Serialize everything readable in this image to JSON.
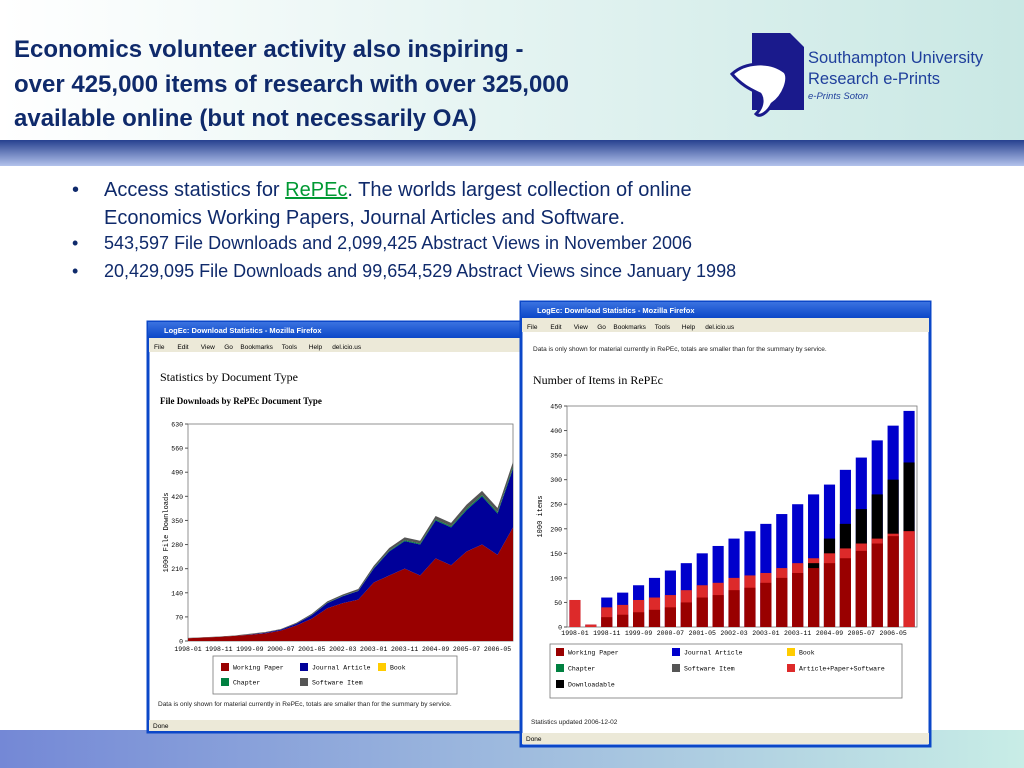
{
  "header": {
    "title_lines": [
      "Economics volunteer activity also inspiring -",
      "over 425,000 items of research with over 325,000",
      "available online (but not necessarily OA)"
    ],
    "logo": {
      "line1": "Southampton University",
      "line2": "Research e-Prints",
      "line3": "e-Prints Soton"
    }
  },
  "bullets": [
    [
      "Access statistics for ",
      "RePEc",
      ". The worlds largest collection of online",
      "Economics Working Papers, Journal Articles and Software."
    ],
    [
      "543,597 File Downloads and 2,099,425 Abstract Views in November 2006"
    ],
    [
      "20,429,095 File Downloads and 99,654,529 Abstract Views since January 1998"
    ]
  ],
  "windows": [
    {
      "title": "LogEc: Download Statistics - Mozilla Firefox",
      "menu": [
        "File",
        "Edit",
        "View",
        "Go",
        "Bookmarks",
        "Tools",
        "Help",
        "del.icio.us"
      ],
      "heading": "Statistics by Document Type",
      "subheading": "File Downloads by RePEc Document Type",
      "chart": {
        "type": "area",
        "stacked": true,
        "y_label": "1000 File Downloads",
        "categories": [
          "1998-01",
          null,
          "1998-11",
          null,
          "1999-09",
          null,
          "2000-07",
          null,
          "2001-05",
          null,
          "2002-03",
          null,
          "2003-01",
          null,
          "2003-11",
          null,
          "2004-09",
          null,
          "2005-07",
          null,
          "2006-05",
          null
        ],
        "ylim": [
          0,
          630
        ],
        "yticks": [
          0,
          70,
          140,
          210,
          280,
          350,
          420,
          490,
          560,
          630
        ],
        "series": [
          {
            "name": "Working Paper",
            "color": "#990000",
            "values": [
              8,
              10,
              12,
              15,
              18,
              22,
              30,
              45,
              65,
              95,
              110,
              120,
              170,
              190,
              210,
              190,
              240,
              220,
              260,
              280,
              250,
              330
            ]
          },
          {
            "name": "Journal Article",
            "color": "#000099",
            "values": [
              0,
              0,
              0,
              0,
              1,
              2,
              3,
              5,
              10,
              15,
              20,
              25,
              40,
              70,
              80,
              90,
              110,
              110,
              120,
              140,
              120,
              170
            ]
          },
          {
            "name": "Book",
            "color": "#ffcc00",
            "values": [
              0,
              0,
              0,
              0,
              0,
              0,
              0,
              0,
              0,
              0,
              0,
              0,
              0,
              0,
              0,
              0,
              0,
              0,
              0,
              0,
              0,
              0
            ]
          },
          {
            "name": "Chapter",
            "color": "#008040",
            "values": [
              0,
              0,
              0,
              0,
              0,
              0,
              0,
              0,
              1,
              1,
              1,
              1,
              2,
              2,
              3,
              3,
              3,
              3,
              4,
              4,
              4,
              5
            ]
          },
          {
            "name": "Software Item",
            "color": "#555555",
            "values": [
              1,
              1,
              1,
              1,
              2,
              2,
              2,
              3,
              3,
              4,
              4,
              5,
              6,
              8,
              8,
              8,
              10,
              10,
              12,
              12,
              12,
              15
            ]
          }
        ]
      },
      "note": "Data is only shown for material currently in RePEc, totals are smaller than for the summary by service.",
      "status": "Done"
    },
    {
      "title": "LogEc: Download Statistics - Mozilla Firefox",
      "menu": [
        "File",
        "Edit",
        "View",
        "Go",
        "Bookmarks",
        "Tools",
        "Help",
        "del.icio.us"
      ],
      "note": "Data is only shown for material currently in RePEc, totals are smaller than for the summary by service.",
      "heading": "Number of Items in RePEc",
      "chart": {
        "type": "bar",
        "stacked": false,
        "y_label": "1000 items",
        "categories": [
          "1998-01",
          null,
          "1998-11",
          null,
          "1999-09",
          null,
          "2000-07",
          null,
          "2001-05",
          null,
          "2002-03",
          null,
          "2003-01",
          null,
          "2003-11",
          null,
          "2004-09",
          null,
          "2005-07",
          null,
          "2006-05",
          null
        ],
        "ylim": [
          0,
          450
        ],
        "yticks": [
          0,
          50,
          100,
          150,
          200,
          250,
          300,
          350,
          400,
          450
        ],
        "series": [
          {
            "name": "Working Paper",
            "color": "#990000",
            "values": [
              0,
              0,
              20,
              25,
              30,
              35,
              40,
              50,
              60,
              65,
              75,
              80,
              90,
              100,
              110,
              120,
              130,
              140,
              155,
              170,
              185,
              195
            ]
          },
          {
            "name": "Journal Article",
            "color": "#0000cc",
            "values": [
              55,
              5,
              60,
              70,
              85,
              100,
              115,
              130,
              150,
              165,
              180,
              195,
              210,
              230,
              250,
              270,
              290,
              320,
              345,
              380,
              410,
              440
            ]
          },
          {
            "name": "Book",
            "color": "#ffcc00",
            "values": [
              0,
              0,
              0,
              0,
              0,
              0,
              0,
              0,
              0,
              0,
              0,
              0,
              0,
              0,
              0,
              0,
              0,
              0,
              0,
              0,
              0,
              0
            ]
          },
          {
            "name": "Chapter",
            "color": "#008040",
            "values": [
              0,
              0,
              0,
              0,
              0,
              0,
              0,
              0,
              0,
              0,
              0,
              0,
              0,
              0,
              0,
              0,
              0,
              0,
              0,
              0,
              0,
              0
            ]
          },
          {
            "name": "Software Item",
            "color": "#555555",
            "values": [
              0,
              0,
              0,
              0,
              0,
              0,
              0,
              0,
              0,
              0,
              0,
              0,
              0,
              0,
              0,
              0,
              0,
              0,
              0,
              0,
              0,
              0
            ]
          },
          {
            "name": "Article+Paper+Software",
            "color": "#dd2a2a",
            "values": [
              55,
              5,
              40,
              45,
              55,
              60,
              65,
              75,
              85,
              90,
              100,
              105,
              110,
              120,
              130,
              140,
              150,
              160,
              170,
              180,
              190,
              195
            ]
          },
          {
            "name": "Downloadable",
            "color": "#000000",
            "values": [
              0,
              0,
              0,
              0,
              0,
              0,
              0,
              0,
              0,
              0,
              0,
              0,
              0,
              0,
              0,
              130,
              180,
              210,
              240,
              270,
              300,
              335
            ]
          }
        ]
      },
      "updated": "Statistics updated 2006-12-02",
      "status": "Done"
    }
  ]
}
